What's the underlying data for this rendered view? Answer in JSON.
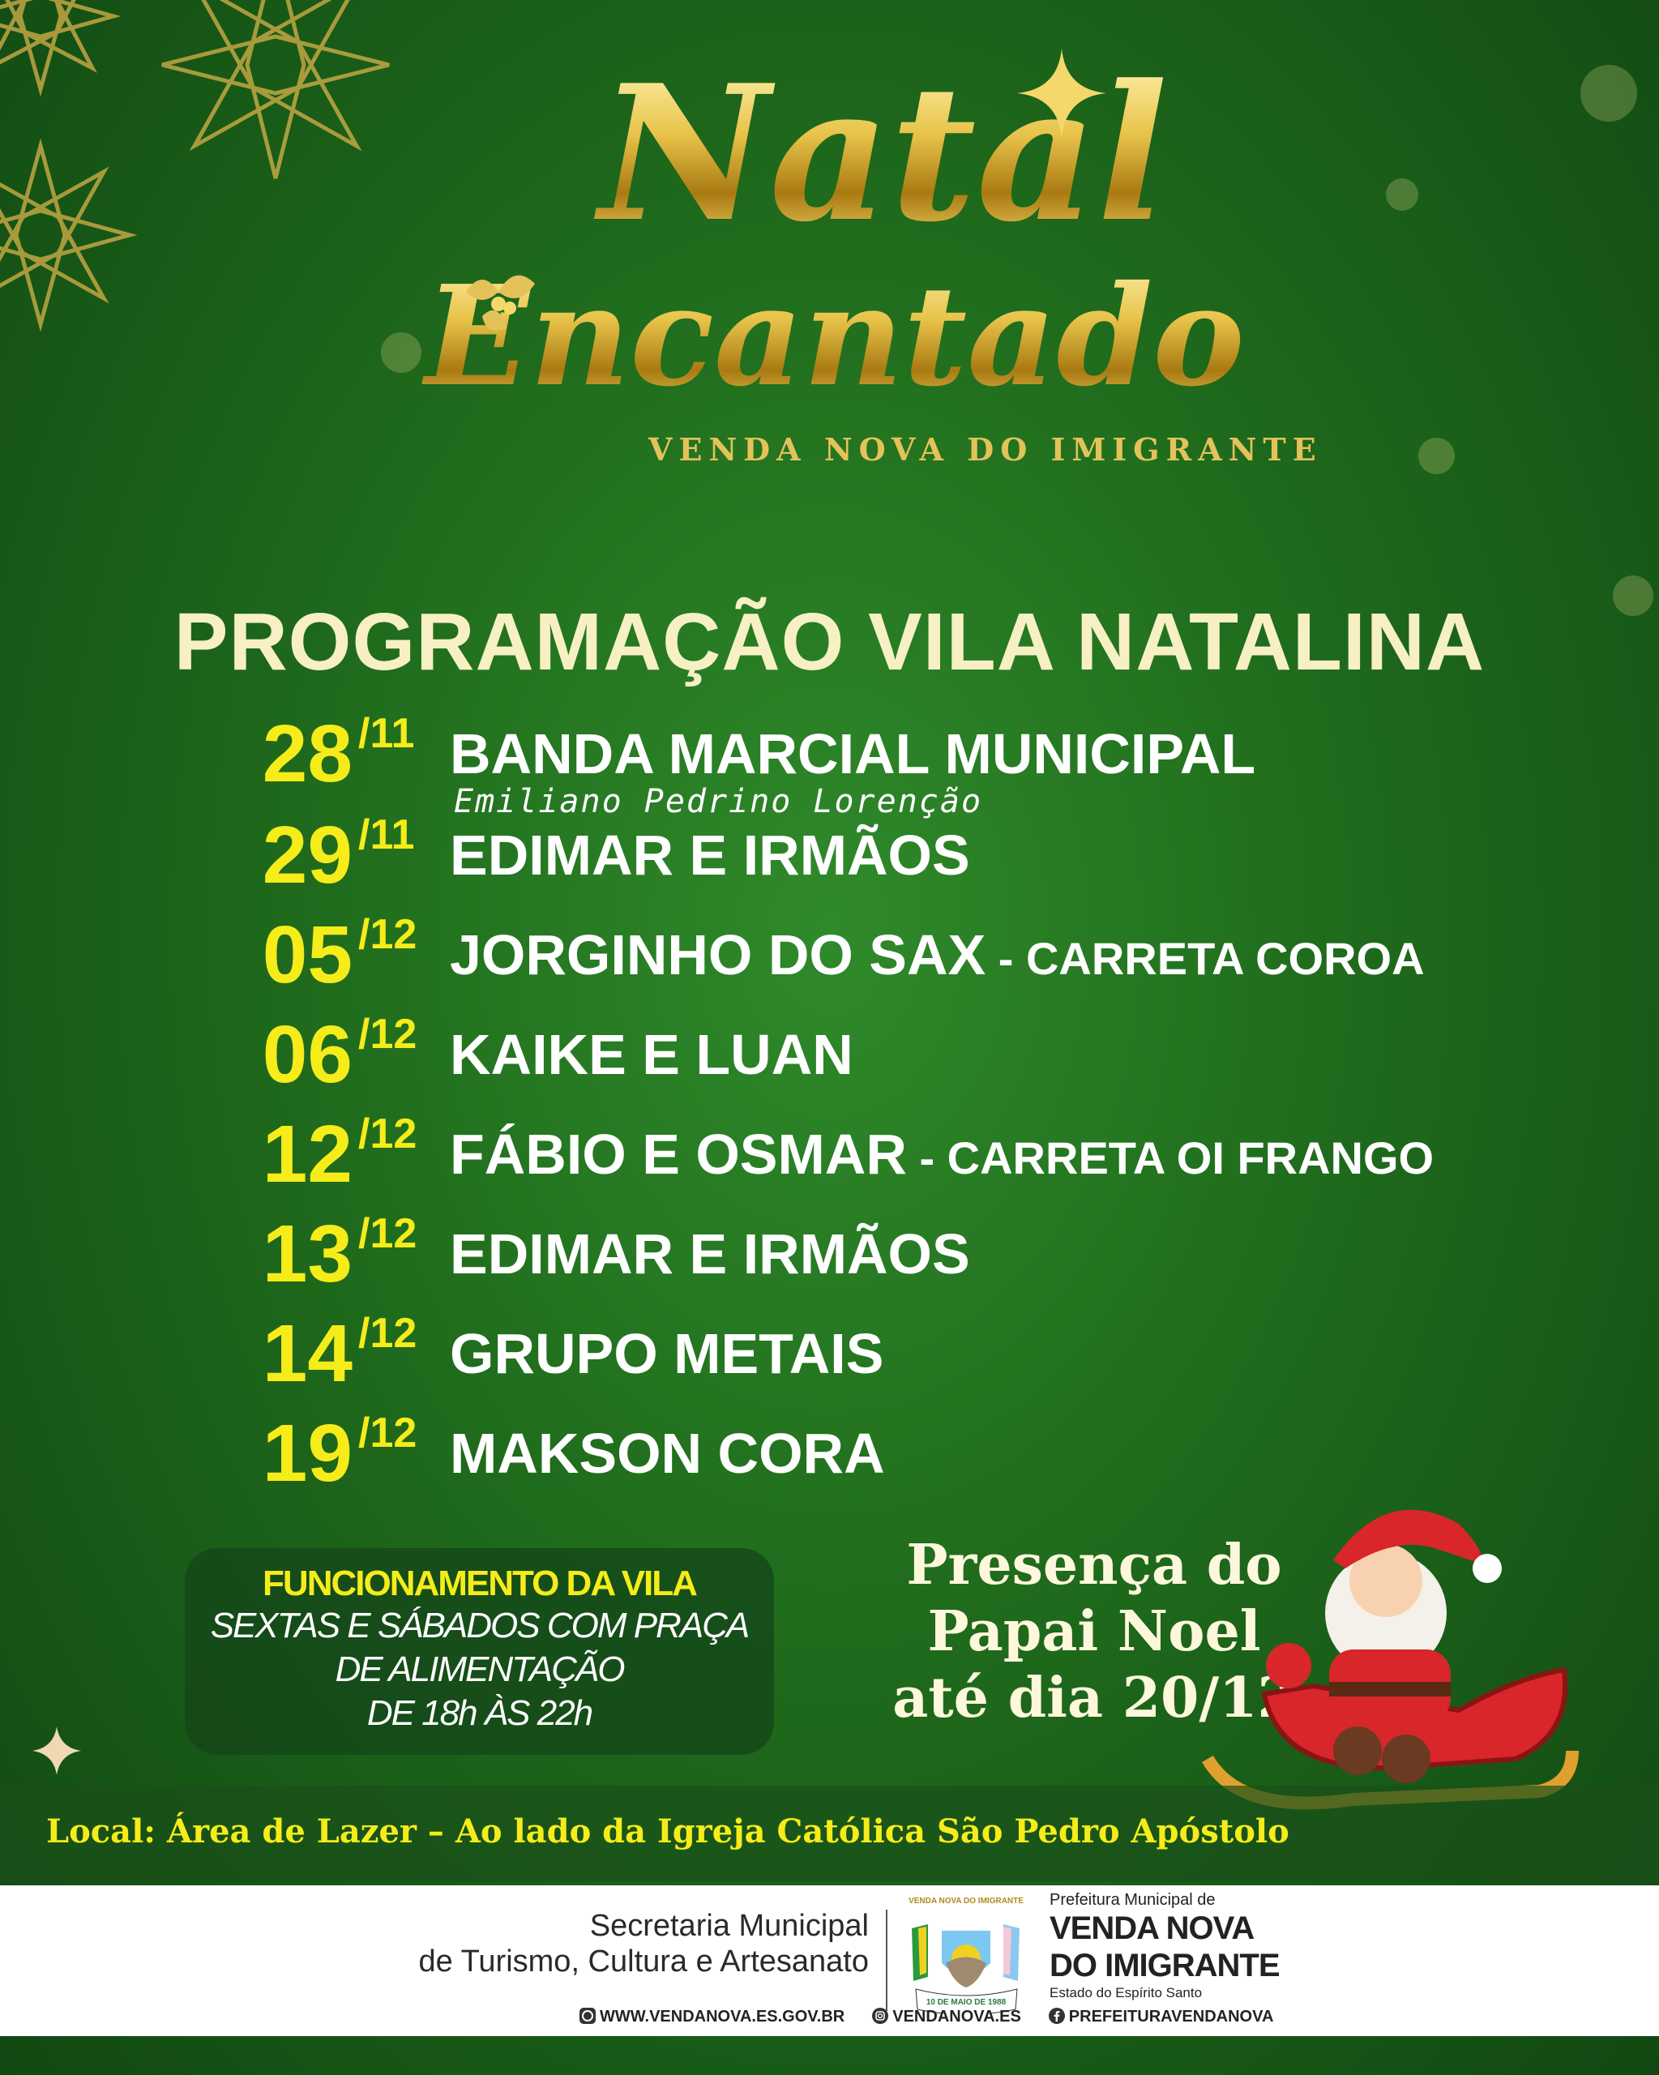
{
  "logo": {
    "line1": "Natal",
    "line2": "Encantado",
    "subtitle": "VENDA NOVA DO IMIGRANTE"
  },
  "title": "PROGRAMAÇÃO VILA NATALINA",
  "schedule": [
    {
      "day": "28",
      "month": "/11",
      "artist": "BANDA MARCIAL MUNICIPAL",
      "extra": "",
      "subtitle": "Emiliano Pedrino Lorenção"
    },
    {
      "day": "29",
      "month": "/11",
      "artist": "EDIMAR E IRMÃOS",
      "extra": ""
    },
    {
      "day": "05",
      "month": "/12",
      "artist": "JORGINHO DO SAX",
      "extra": " - CARRETA COROA"
    },
    {
      "day": "06",
      "month": "/12",
      "artist": "KAIKE E LUAN",
      "extra": ""
    },
    {
      "day": "12",
      "month": "/12",
      "artist": "FÁBIO E OSMAR",
      "extra": " - CARRETA OI FRANGO"
    },
    {
      "day": "13",
      "month": "/12",
      "artist": "EDIMAR E IRMÃOS",
      "extra": ""
    },
    {
      "day": "14",
      "month": "/12",
      "artist": "GRUPO METAIS",
      "extra": ""
    },
    {
      "day": "19",
      "month": "/12",
      "artist": "MAKSON CORA",
      "extra": ""
    }
  ],
  "hours": {
    "title": "FUNCIONAMENTO DA VILA",
    "line1": "SEXTAS E SÁBADOS COM PRAÇA",
    "line2": "DE ALIMENTAÇÃO",
    "line3": "DE 18h ÀS 22h"
  },
  "santa": {
    "line1": "Presença do",
    "line2": "Papai Noel",
    "line3": "até dia 20/12"
  },
  "location": "Local: Área de Lazer – Ao lado da Igreja Católica São Pedro Apóstolo",
  "footer": {
    "secretaria1": "Secretaria Municipal",
    "secretaria2": "de Turismo, Cultura e Artesanato",
    "crest_text_top": "VENDA NOVA DO IMIGRANTE",
    "crest_text_ribbon": "10 DE MAIO DE 1988",
    "pref_top": "Prefeitura Municipal de",
    "pref_name1": "VENDA NOVA",
    "pref_name2": "DO IMIGRANTE",
    "pref_state": "Estado do Espírito Santo",
    "website": "WWW.VENDANOVA.ES.GOV.BR",
    "instagram": "VENDANOVA.ES",
    "facebook": "PREFEITURAVENDANOVA"
  },
  "colors": {
    "background": "#1f6a1c",
    "date_yellow": "#f5ec1a",
    "gold": "#e4c25a"
  }
}
